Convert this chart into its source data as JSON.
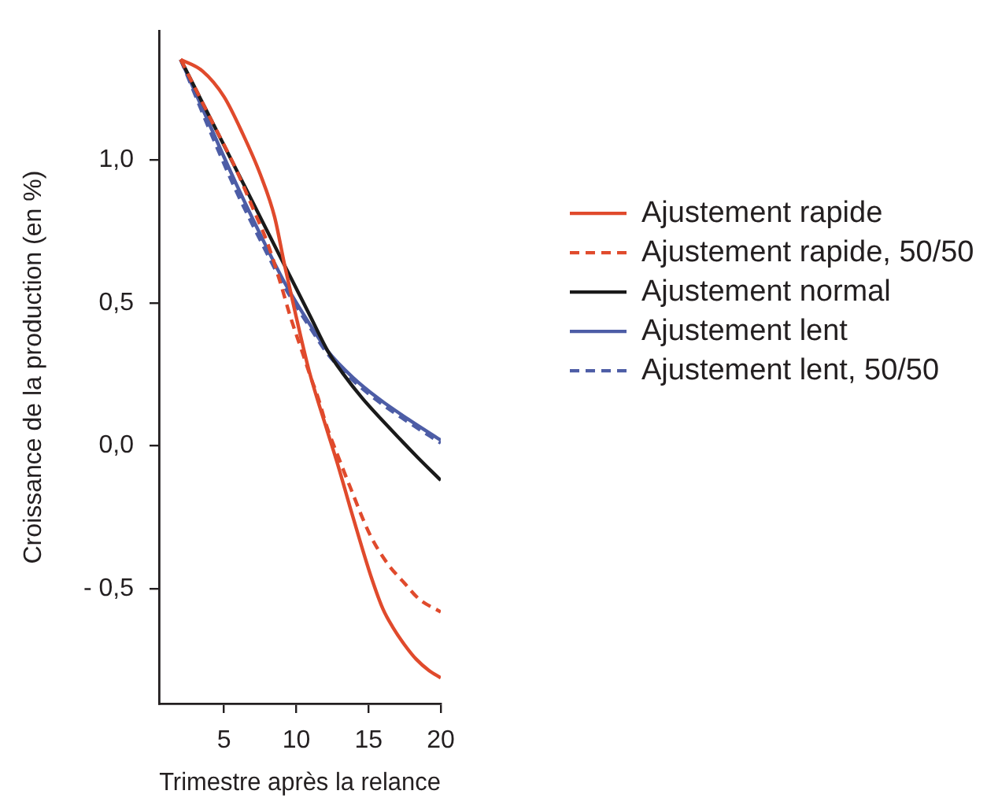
{
  "chart_data": {
    "type": "line",
    "xlabel": "Trimestre après la relance",
    "ylabel": "Croissance de la production (en %)",
    "xlim": [
      0.5,
      20
    ],
    "ylim": [
      -0.9,
      1.45
    ],
    "xticks": [
      5,
      10,
      15,
      20
    ],
    "yticks": [
      {
        "value": -0.5,
        "label": "- 0,5"
      },
      {
        "value": 0,
        "label": "0,0"
      },
      {
        "value": 0.5,
        "label": "0,5"
      },
      {
        "value": 1,
        "label": "1,0"
      }
    ],
    "grid": false,
    "legend": "right",
    "marker": "none",
    "series": [
      {
        "name": "Ajustement rapide",
        "color": "#e04a2c",
        "line_style": "solid",
        "x": [
          2,
          3.5,
          5,
          6.3,
          7.5,
          8.5,
          9.2,
          10,
          10.9,
          12.1,
          12.9,
          13.7,
          14.4,
          15.2,
          16,
          16.7,
          17.5,
          18.3,
          19.2,
          20
        ],
        "values": [
          1.35,
          1.31,
          1.22,
          1.09,
          0.95,
          0.8,
          0.63,
          0.45,
          0.26,
          0.06,
          -0.07,
          -0.21,
          -0.33,
          -0.46,
          -0.57,
          -0.635,
          -0.695,
          -0.745,
          -0.785,
          -0.81
        ]
      },
      {
        "name": "Ajustement rapide, 50/50",
        "color": "#e04a2c",
        "line_style": "dashed",
        "x": [
          2,
          4.1,
          5.8,
          7,
          8,
          8.9,
          9.6,
          10.4,
          11,
          11.5,
          12.1,
          13,
          13.7,
          15.1,
          16.3,
          17.5,
          18.5,
          20
        ],
        "values": [
          1.35,
          1.14,
          0.97,
          0.83,
          0.71,
          0.57,
          0.45,
          0.33,
          0.24,
          0.17,
          0.07,
          -0.05,
          -0.14,
          -0.31,
          -0.41,
          -0.48,
          -0.535,
          -0.58
        ]
      },
      {
        "name": "Ajustement normal",
        "color": "#1a1a1a",
        "line_style": "solid",
        "x": [
          2,
          4.2,
          5.8,
          7.5,
          9.2,
          11,
          12.2,
          13.2,
          14.6,
          16.5,
          18.4,
          20
        ],
        "values": [
          1.35,
          1.13,
          0.97,
          0.8,
          0.63,
          0.45,
          0.33,
          0.255,
          0.165,
          0.06,
          -0.04,
          -0.12
        ]
      },
      {
        "name": "Ajustement lent",
        "color": "#4d5da6",
        "line_style": "solid",
        "x": [
          2,
          4.2,
          5.8,
          7.5,
          9.2,
          11,
          12.2,
          13.9,
          15.7,
          17.7,
          20
        ],
        "values": [
          1.35,
          1.1,
          0.92,
          0.74,
          0.57,
          0.42,
          0.33,
          0.24,
          0.165,
          0.095,
          0.02
        ]
      },
      {
        "name": "Ajustement lent, 50/50",
        "color": "#4d5da6",
        "line_style": "dashed",
        "x": [
          2,
          4.2,
          5.8,
          7.5,
          9.2,
          11,
          12.2,
          13.9,
          15.7,
          17.7,
          20
        ],
        "values": [
          1.35,
          1.08,
          0.895,
          0.72,
          0.555,
          0.41,
          0.32,
          0.23,
          0.155,
          0.085,
          0.01
        ]
      }
    ]
  }
}
